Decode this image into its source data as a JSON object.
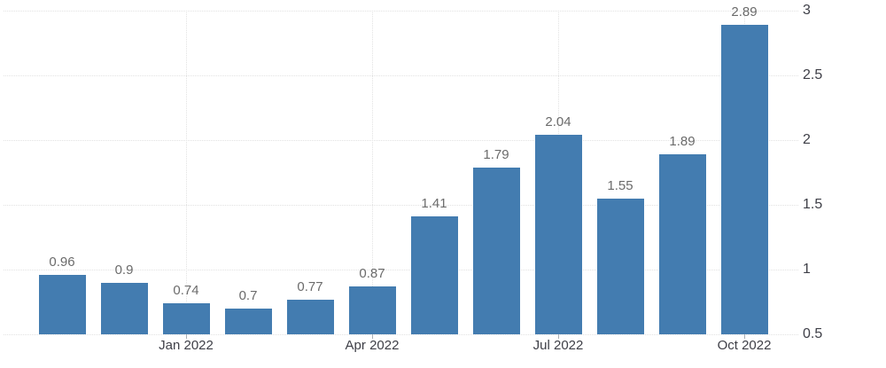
{
  "chart_data": {
    "type": "bar",
    "title": "",
    "xlabel": "",
    "ylabel": "",
    "values": [
      0.96,
      0.9,
      0.74,
      0.7,
      0.77,
      0.87,
      1.41,
      1.79,
      2.04,
      1.55,
      1.89,
      2.89
    ],
    "value_labels": [
      "0.96",
      "0.9",
      "0.74",
      "0.7",
      "0.77",
      "0.87",
      "1.41",
      "1.79",
      "2.04",
      "1.55",
      "1.89",
      "2.89"
    ],
    "x_tick_labels": [
      "Jan 2022",
      "Apr 2022",
      "Jul 2022",
      "Oct 2022"
    ],
    "x_tick_bar_indices": [
      2,
      5,
      8,
      11
    ],
    "y_ticks": [
      0.5,
      1,
      1.5,
      2,
      2.5,
      3
    ],
    "y_tick_labels": [
      "0.5",
      "1",
      "1.5",
      "2",
      "2.5",
      "3"
    ],
    "ylim": [
      0.5,
      3
    ],
    "grid": true,
    "legend_position": "none",
    "y_axis_side": "right",
    "colors": {
      "bar": "#437cb0",
      "grid": "#e2e2e2",
      "tick": "#aab0b6",
      "value_label": "#6b6b6b",
      "axis_label": "#3e3f47",
      "background": "#ffffff"
    }
  }
}
